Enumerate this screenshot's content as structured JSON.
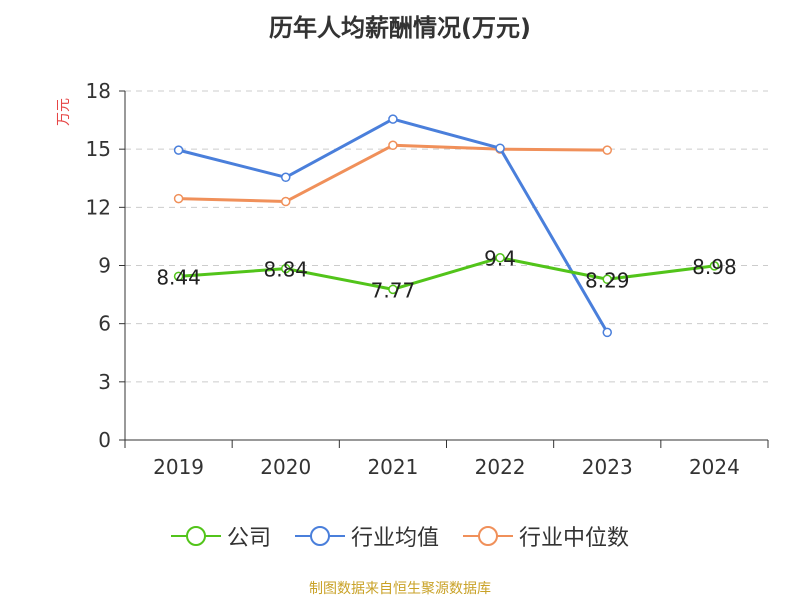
{
  "chart_data": {
    "type": "line",
    "title": "历年人均薪酬情况(万元)",
    "ylabel": "万元",
    "categories": [
      "2019",
      "2020",
      "2021",
      "2022",
      "2023",
      "2024"
    ],
    "ylim": [
      0,
      18
    ],
    "yticks": [
      0,
      3,
      6,
      9,
      12,
      15,
      18
    ],
    "grid": true,
    "legend_position": "bottom",
    "series": [
      {
        "name": "公司",
        "color": "#52c41a",
        "values": [
          8.44,
          8.84,
          7.77,
          9.4,
          8.29,
          8.98
        ],
        "labels": [
          "8.44",
          "8.84",
          "7.77",
          "9.4",
          "8.29",
          "8.98"
        ]
      },
      {
        "name": "行业均值",
        "color": "#4a7fdb",
        "values": [
          14.95,
          13.55,
          16.55,
          15.05,
          5.55,
          null
        ]
      },
      {
        "name": "行业中位数",
        "color": "#f0905a",
        "values": [
          12.45,
          12.3,
          15.2,
          15.0,
          14.95,
          null
        ]
      }
    ]
  },
  "source": "制图数据来自恒生聚源数据库"
}
